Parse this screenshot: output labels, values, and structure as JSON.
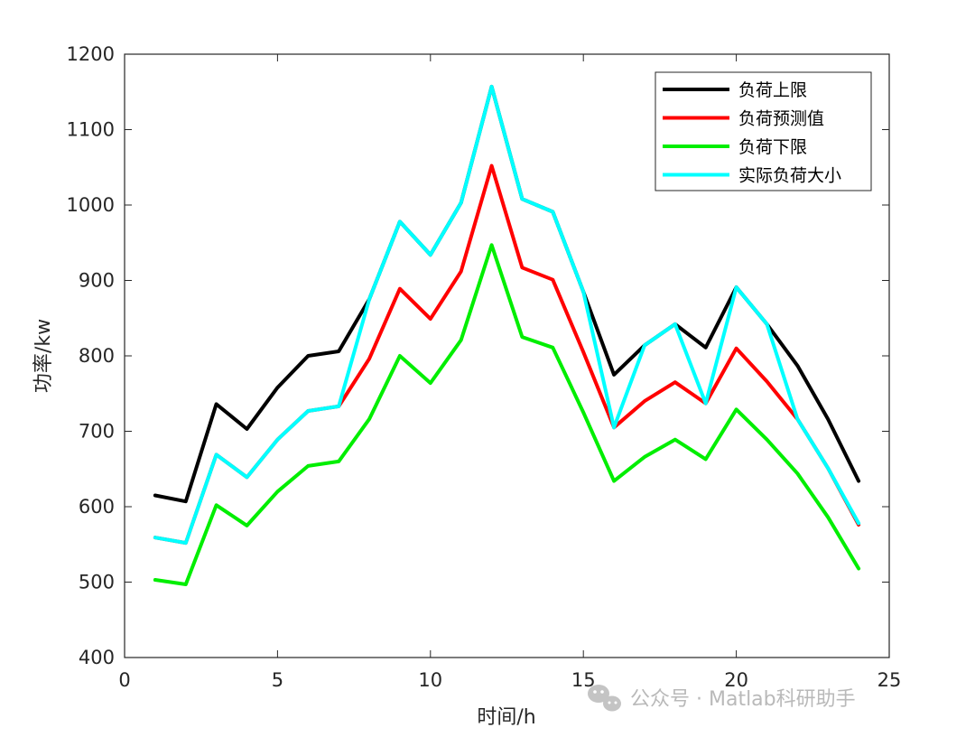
{
  "chart_data": {
    "type": "line",
    "title": "",
    "xlabel": "时间/h",
    "ylabel": "功率/kw",
    "xlim": [
      0,
      25
    ],
    "ylim": [
      400,
      1200
    ],
    "xticks": [
      0,
      5,
      10,
      15,
      20,
      25
    ],
    "yticks": [
      400,
      500,
      600,
      700,
      800,
      900,
      1000,
      1100,
      1200
    ],
    "grid": false,
    "legend_position": "top-right",
    "x": [
      1,
      2,
      3,
      4,
      5,
      6,
      7,
      8,
      9,
      10,
      11,
      12,
      13,
      14,
      15,
      16,
      17,
      18,
      19,
      20,
      21,
      22,
      23,
      24
    ],
    "series": [
      {
        "name": "负荷上限",
        "color": "#000000",
        "values": [
          615,
          607,
          736,
          703,
          758,
          800,
          806,
          875,
          978,
          934,
          1003,
          1157,
          1008,
          991,
          885,
          775,
          814,
          842,
          811,
          891,
          842,
          787,
          716,
          634
        ]
      },
      {
        "name": "负荷预测值",
        "color": "#ff0000",
        "values": [
          559,
          552,
          669,
          639,
          689,
          727,
          733,
          796,
          889,
          849,
          912,
          1052,
          917,
          901,
          805,
          705,
          740,
          765,
          737,
          810,
          766,
          716,
          651,
          576
        ]
      },
      {
        "name": "负荷下限",
        "color": "#00ee00",
        "values": [
          503,
          497,
          602,
          575,
          620,
          654,
          660,
          716,
          800,
          764,
          821,
          947,
          825,
          811,
          725,
          634,
          666,
          689,
          663,
          729,
          689,
          644,
          586,
          518
        ]
      },
      {
        "name": "实际负荷大小",
        "color": "#00ffff",
        "values": [
          559,
          552,
          669,
          639,
          689,
          727,
          733,
          875,
          978,
          934,
          1003,
          1157,
          1008,
          991,
          885,
          705,
          814,
          842,
          737,
          891,
          842,
          716,
          651,
          578
        ]
      }
    ]
  },
  "watermark": {
    "icon": "wechat-icon",
    "text": "公众号 · Matlab科研助手"
  }
}
